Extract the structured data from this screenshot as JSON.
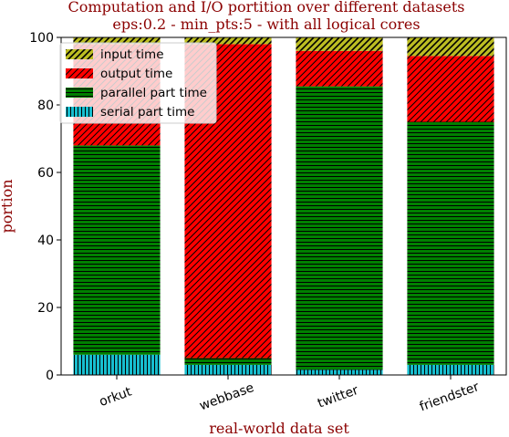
{
  "chart_data": {
    "type": "bar",
    "stacked": true,
    "title": "Computation and I/O portition over different datasets",
    "subtitle": "eps:0.2 - min_pts:5 - with all logical cores",
    "xlabel": "real-world data set",
    "ylabel": "portion",
    "categories": [
      "orkut",
      "webbase",
      "twitter",
      "friendster"
    ],
    "ylim": [
      0,
      100
    ],
    "yticks": [
      "0",
      "20",
      "40",
      "60",
      "80",
      "100"
    ],
    "legend_position": "top-left",
    "grid": false,
    "series": [
      {
        "name": "serial part time",
        "values": [
          6,
          3,
          1.5,
          3
        ],
        "color": "#17becf",
        "hatch": "vertical"
      },
      {
        "name": "parallel part time",
        "values": [
          62,
          2,
          84,
          72
        ],
        "color": "#008000",
        "hatch": "horizontal"
      },
      {
        "name": "output time",
        "values": [
          30,
          93,
          10.5,
          19.5
        ],
        "color": "#ff0000",
        "hatch": "diagonal"
      },
      {
        "name": "input time",
        "values": [
          2,
          2,
          4,
          5.5
        ],
        "color": "#bcbd22",
        "hatch": "diagonal"
      }
    ],
    "legend_order": [
      "input time",
      "output time",
      "parallel part time",
      "serial part time"
    ]
  }
}
